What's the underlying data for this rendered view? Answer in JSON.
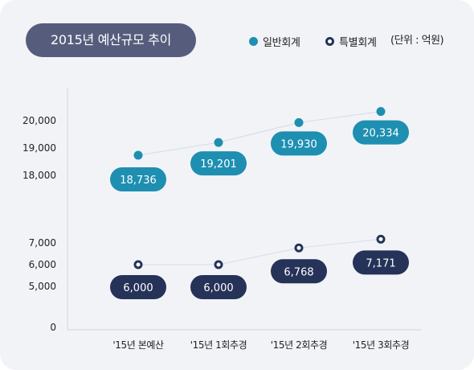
{
  "chart_data": {
    "type": "line",
    "title": "2015년 예산규모 추이",
    "unit": "(단위 : 억원)",
    "categories": [
      "'15년 본예산",
      "'15년 1회추경",
      "'15년 2회추경",
      "'15년 3회추경"
    ],
    "y_ticks": [
      "0",
      "5,000",
      "6,000",
      "7,000",
      "18,000",
      "19,000",
      "20,000"
    ],
    "y_axis_broken": true,
    "series": [
      {
        "name": "일반회계",
        "values": [
          18736,
          19201,
          19930,
          20334
        ],
        "labels": [
          "18,736",
          "19,201",
          "19,930",
          "20,334"
        ],
        "color": "#1e8fb1"
      },
      {
        "name": "특별회계",
        "values": [
          6000,
          6000,
          6768,
          7171
        ],
        "labels": [
          "6,000",
          "6,000",
          "6,768",
          "7,171"
        ],
        "color": "#263358"
      }
    ],
    "legend_position": "top-right"
  }
}
